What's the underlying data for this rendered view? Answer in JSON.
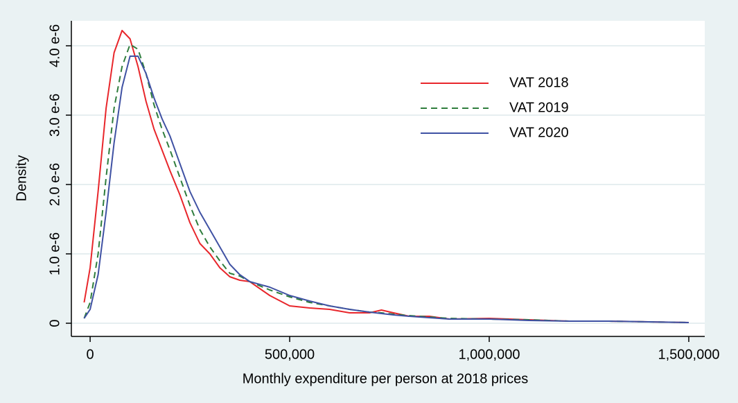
{
  "chart_data": {
    "type": "line",
    "xlabel": "Monthly expenditure per person at 2018 prices",
    "ylabel": "Density",
    "x": [
      -15000,
      0,
      20000,
      40000,
      60000,
      80000,
      100000,
      120000,
      140000,
      160000,
      180000,
      200000,
      225000,
      250000,
      275000,
      300000,
      325000,
      350000,
      375000,
      400000,
      450000,
      500000,
      550000,
      600000,
      650000,
      700000,
      730000,
      760000,
      800000,
      850000,
      900000,
      1000000,
      1100000,
      1200000,
      1300000,
      1400000,
      1500000
    ],
    "series": [
      {
        "name": "VAT 2018",
        "color": "#e8262b",
        "line_style": "solid",
        "values": [
          3e-07,
          8e-07,
          1.9e-06,
          3.1e-06,
          3.9e-06,
          4.22e-06,
          4.1e-06,
          3.7e-06,
          3.2e-06,
          2.8e-06,
          2.5e-06,
          2.2e-06,
          1.85e-06,
          1.45e-06,
          1.15e-06,
          1e-06,
          8e-07,
          6.7e-07,
          6.2e-07,
          6e-07,
          4e-07,
          2.5e-07,
          2.2e-07,
          2e-07,
          1.5e-07,
          1.5e-07,
          1.9e-07,
          1.5e-07,
          1e-07,
          1e-07,
          6e-08,
          7e-08,
          5e-08,
          3e-08,
          3e-08,
          2e-08,
          1e-08
        ]
      },
      {
        "name": "VAT 2019",
        "color": "#2e7d3c",
        "line_style": "dashed",
        "values": [
          7e-08,
          3e-07,
          1e-06,
          2.1e-06,
          3.1e-06,
          3.7e-06,
          4.02e-06,
          3.95e-06,
          3.6e-06,
          3.15e-06,
          2.8e-06,
          2.5e-06,
          2.1e-06,
          1.7e-06,
          1.35e-06,
          1.1e-06,
          9e-07,
          7.2e-07,
          6.8e-07,
          6e-07,
          4.8e-07,
          3.8e-07,
          3e-07,
          2.5e-07,
          2e-07,
          1.6e-07,
          1.5e-07,
          1.3e-07,
          1.1e-07,
          9e-08,
          7e-08,
          6e-08,
          5e-08,
          3e-08,
          3e-08,
          2e-08,
          1e-08
        ]
      },
      {
        "name": "VAT 2020",
        "color": "#3f51a3",
        "line_style": "solid",
        "values": [
          7e-08,
          2e-07,
          7e-07,
          1.6e-06,
          2.6e-06,
          3.4e-06,
          3.85e-06,
          3.85e-06,
          3.6e-06,
          3.25e-06,
          2.95e-06,
          2.7e-06,
          2.3e-06,
          1.9e-06,
          1.6e-06,
          1.35e-06,
          1.1e-06,
          8.5e-07,
          7e-07,
          6e-07,
          5.2e-07,
          4e-07,
          3.2e-07,
          2.5e-07,
          2e-07,
          1.6e-07,
          1.4e-07,
          1.2e-07,
          1e-07,
          8e-08,
          6e-08,
          6e-08,
          4e-08,
          3e-08,
          3e-08,
          2e-08,
          1e-08
        ]
      }
    ],
    "xlim": [
      -47000,
      1540000
    ],
    "ylim": [
      -1.9e-07,
      4.36e-06
    ],
    "xticks": [
      0,
      {
        "value": 500000,
        "label": "500,000"
      },
      {
        "value": 1000000,
        "label": "1,000,000"
      },
      {
        "value": 1500000,
        "label": "1,500,000"
      }
    ],
    "yticks": [
      0,
      {
        "value": 1e-06,
        "label": "1.0 e-6"
      },
      {
        "value": 2e-06,
        "label": "2.0 e-6"
      },
      {
        "value": 3e-06,
        "label": "3.0 e-6"
      },
      {
        "value": 4e-06,
        "label": "4.0 e-6"
      }
    ],
    "grid": true,
    "legend": "top-right"
  }
}
